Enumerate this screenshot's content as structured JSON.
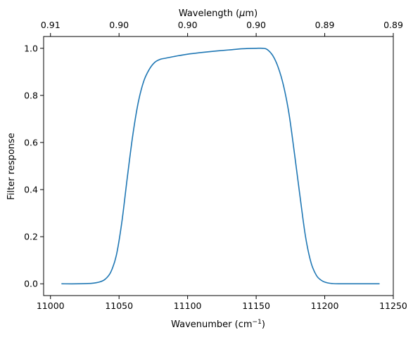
{
  "chart_data": {
    "type": "line",
    "title": "",
    "xlabel": "Wavenumber (cm",
    "xlabel_sup": "−1",
    "xlabel_close": ")",
    "ylabel": "Filter response",
    "secondary_xlabel_pre": "Wavelength (",
    "secondary_xlabel_mu": "μ",
    "secondary_xlabel_post": "m)",
    "xlim": [
      10995,
      11250
    ],
    "ylim": [
      -0.05,
      1.05
    ],
    "xticks": [
      11000,
      11050,
      11100,
      11150,
      11200,
      11250
    ],
    "yticks": [
      0.0,
      0.2,
      0.4,
      0.6,
      0.8,
      1.0
    ],
    "ytick_labels": [
      "0.0",
      "0.2",
      "0.4",
      "0.6",
      "0.8",
      "1.0"
    ],
    "secondary_xtick_labels": [
      "0.91",
      "0.90",
      "0.90",
      "0.90",
      "0.89",
      "0.89"
    ],
    "grid": false,
    "line_color": "#1f77b4",
    "series": [
      {
        "x": [
          11008,
          11020,
          11030,
          11036,
          11040,
          11044,
          11048,
          11052,
          11056,
          11060,
          11064,
          11068,
          11072,
          11076,
          11080,
          11084,
          11090,
          11100,
          11110,
          11120,
          11130,
          11140,
          11150,
          11155,
          11158,
          11162,
          11166,
          11170,
          11174,
          11178,
          11182,
          11186,
          11190,
          11194,
          11198,
          11202,
          11206,
          11210,
          11220,
          11240
        ],
        "values": [
          0.0,
          0.0,
          0.002,
          0.008,
          0.02,
          0.05,
          0.12,
          0.26,
          0.45,
          0.63,
          0.77,
          0.86,
          0.91,
          0.94,
          0.953,
          0.958,
          0.965,
          0.975,
          0.982,
          0.988,
          0.993,
          0.998,
          1.0,
          1.0,
          0.995,
          0.97,
          0.92,
          0.84,
          0.72,
          0.55,
          0.37,
          0.2,
          0.09,
          0.035,
          0.013,
          0.004,
          0.001,
          0.0,
          0.0,
          0.0
        ]
      }
    ]
  }
}
